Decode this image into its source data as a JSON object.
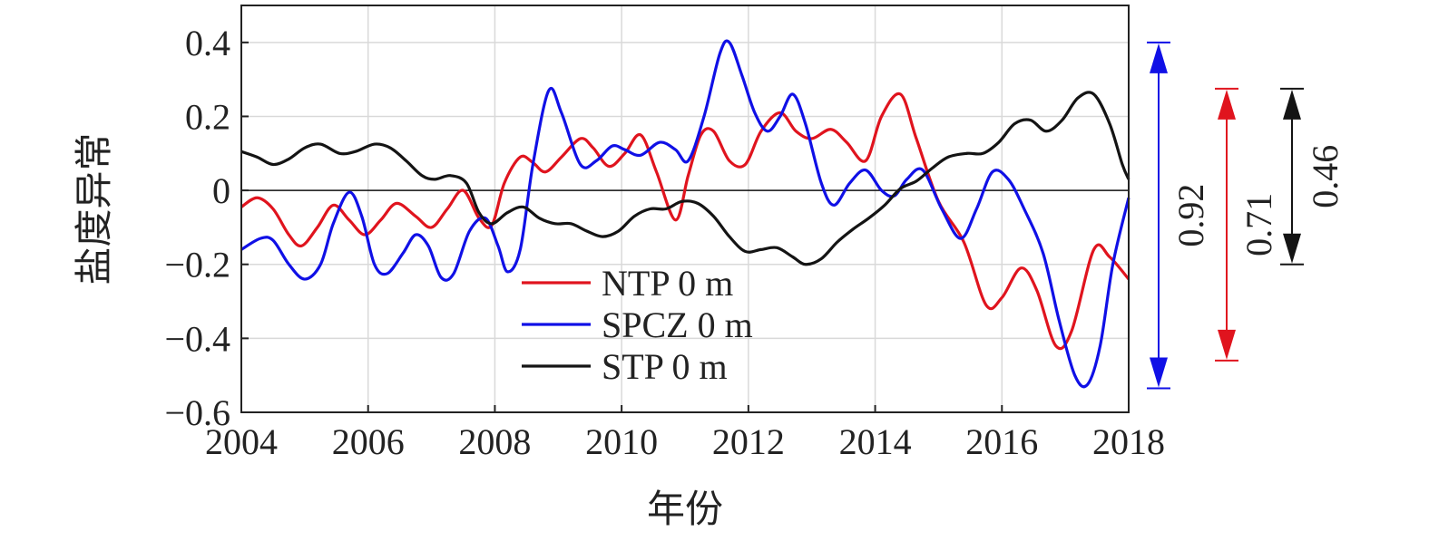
{
  "chart_data": {
    "type": "line",
    "xlabel": "年份",
    "ylabel": "盐度异常",
    "xlim": [
      2004,
      2018
    ],
    "ylim": [
      -0.6,
      0.5
    ],
    "x_ticks": [
      2004,
      2006,
      2008,
      2010,
      2012,
      2014,
      2016,
      2018
    ],
    "x_tick_labels": [
      "2004",
      "2006",
      "2008",
      "2010",
      "2012",
      "2014",
      "2016",
      "2018"
    ],
    "y_ticks": [
      0.4,
      0.2,
      0,
      -0.2,
      -0.4,
      -0.6
    ],
    "y_tick_labels": [
      "0.4",
      "0.2",
      "0",
      "−0.2",
      "−0.4",
      "−0.6"
    ],
    "grid": true,
    "zero_line": true,
    "legend_position": "bottom-center-left",
    "series": [
      {
        "name": "NTP 0 m",
        "color": "#e0141e",
        "points": [
          [
            2004.0,
            -0.045
          ],
          [
            2004.25,
            -0.02
          ],
          [
            2004.5,
            -0.05
          ],
          [
            2004.75,
            -0.12
          ],
          [
            2004.95,
            -0.15
          ],
          [
            2005.2,
            -0.1
          ],
          [
            2005.45,
            -0.04
          ],
          [
            2005.7,
            -0.08
          ],
          [
            2005.95,
            -0.12
          ],
          [
            2006.2,
            -0.08
          ],
          [
            2006.45,
            -0.035
          ],
          [
            2006.75,
            -0.07
          ],
          [
            2007.0,
            -0.1
          ],
          [
            2007.25,
            -0.05
          ],
          [
            2007.5,
            0.0
          ],
          [
            2007.75,
            -0.075
          ],
          [
            2007.95,
            -0.095
          ],
          [
            2008.15,
            0.02
          ],
          [
            2008.4,
            0.09
          ],
          [
            2008.6,
            0.075
          ],
          [
            2008.8,
            0.05
          ],
          [
            2009.05,
            0.09
          ],
          [
            2009.35,
            0.14
          ],
          [
            2009.55,
            0.115
          ],
          [
            2009.8,
            0.065
          ],
          [
            2010.05,
            0.1
          ],
          [
            2010.3,
            0.15
          ],
          [
            2010.55,
            0.05
          ],
          [
            2010.85,
            -0.08
          ],
          [
            2011.05,
            0.04
          ],
          [
            2011.25,
            0.15
          ],
          [
            2011.45,
            0.16
          ],
          [
            2011.7,
            0.08
          ],
          [
            2011.95,
            0.07
          ],
          [
            2012.2,
            0.16
          ],
          [
            2012.5,
            0.21
          ],
          [
            2012.75,
            0.16
          ],
          [
            2013.0,
            0.14
          ],
          [
            2013.3,
            0.165
          ],
          [
            2013.55,
            0.13
          ],
          [
            2013.85,
            0.08
          ],
          [
            2014.1,
            0.2
          ],
          [
            2014.4,
            0.26
          ],
          [
            2014.65,
            0.14
          ],
          [
            2015.0,
            -0.03
          ],
          [
            2015.4,
            -0.14
          ],
          [
            2015.75,
            -0.31
          ],
          [
            2016.0,
            -0.29
          ],
          [
            2016.3,
            -0.21
          ],
          [
            2016.55,
            -0.27
          ],
          [
            2016.85,
            -0.42
          ],
          [
            2017.1,
            -0.38
          ],
          [
            2017.45,
            -0.16
          ],
          [
            2017.7,
            -0.18
          ],
          [
            2018.0,
            -0.24
          ]
        ]
      },
      {
        "name": "SPCZ 0 m",
        "color": "#1010e6",
        "points": [
          [
            2004.0,
            -0.16
          ],
          [
            2004.3,
            -0.13
          ],
          [
            2004.5,
            -0.135
          ],
          [
            2004.75,
            -0.2
          ],
          [
            2005.0,
            -0.24
          ],
          [
            2005.25,
            -0.2
          ],
          [
            2005.45,
            -0.09
          ],
          [
            2005.7,
            -0.005
          ],
          [
            2005.9,
            -0.07
          ],
          [
            2006.1,
            -0.2
          ],
          [
            2006.3,
            -0.225
          ],
          [
            2006.55,
            -0.17
          ],
          [
            2006.75,
            -0.12
          ],
          [
            2006.95,
            -0.15
          ],
          [
            2007.15,
            -0.235
          ],
          [
            2007.35,
            -0.225
          ],
          [
            2007.6,
            -0.11
          ],
          [
            2007.85,
            -0.075
          ],
          [
            2008.05,
            -0.15
          ],
          [
            2008.2,
            -0.22
          ],
          [
            2008.4,
            -0.16
          ],
          [
            2008.6,
            0.07
          ],
          [
            2008.85,
            0.27
          ],
          [
            2009.05,
            0.21
          ],
          [
            2009.35,
            0.07
          ],
          [
            2009.6,
            0.08
          ],
          [
            2009.85,
            0.12
          ],
          [
            2010.05,
            0.11
          ],
          [
            2010.3,
            0.095
          ],
          [
            2010.6,
            0.13
          ],
          [
            2010.85,
            0.11
          ],
          [
            2011.05,
            0.08
          ],
          [
            2011.3,
            0.2
          ],
          [
            2011.55,
            0.37
          ],
          [
            2011.7,
            0.4
          ],
          [
            2011.9,
            0.31
          ],
          [
            2012.1,
            0.21
          ],
          [
            2012.3,
            0.16
          ],
          [
            2012.5,
            0.2
          ],
          [
            2012.7,
            0.26
          ],
          [
            2012.9,
            0.18
          ],
          [
            2013.15,
            0.02
          ],
          [
            2013.35,
            -0.04
          ],
          [
            2013.6,
            0.02
          ],
          [
            2013.85,
            0.055
          ],
          [
            2014.1,
            0.0
          ],
          [
            2014.3,
            -0.015
          ],
          [
            2014.5,
            0.03
          ],
          [
            2014.75,
            0.055
          ],
          [
            2015.05,
            -0.05
          ],
          [
            2015.35,
            -0.13
          ],
          [
            2015.6,
            -0.05
          ],
          [
            2015.85,
            0.05
          ],
          [
            2016.1,
            0.03
          ],
          [
            2016.35,
            -0.05
          ],
          [
            2016.65,
            -0.17
          ],
          [
            2016.9,
            -0.35
          ],
          [
            2017.15,
            -0.5
          ],
          [
            2017.35,
            -0.525
          ],
          [
            2017.55,
            -0.42
          ],
          [
            2017.75,
            -0.2
          ],
          [
            2018.0,
            -0.02
          ]
        ]
      },
      {
        "name": "STP 0 m",
        "color": "#141414",
        "points": [
          [
            2004.0,
            0.105
          ],
          [
            2004.25,
            0.09
          ],
          [
            2004.5,
            0.07
          ],
          [
            2004.75,
            0.085
          ],
          [
            2005.0,
            0.115
          ],
          [
            2005.25,
            0.125
          ],
          [
            2005.55,
            0.1
          ],
          [
            2005.8,
            0.105
          ],
          [
            2006.1,
            0.125
          ],
          [
            2006.35,
            0.115
          ],
          [
            2006.6,
            0.08
          ],
          [
            2006.85,
            0.04
          ],
          [
            2007.05,
            0.03
          ],
          [
            2007.3,
            0.04
          ],
          [
            2007.55,
            0.02
          ],
          [
            2007.75,
            -0.06
          ],
          [
            2007.95,
            -0.09
          ],
          [
            2008.2,
            -0.06
          ],
          [
            2008.45,
            -0.045
          ],
          [
            2008.7,
            -0.075
          ],
          [
            2008.95,
            -0.09
          ],
          [
            2009.2,
            -0.09
          ],
          [
            2009.45,
            -0.11
          ],
          [
            2009.7,
            -0.125
          ],
          [
            2009.95,
            -0.11
          ],
          [
            2010.2,
            -0.07
          ],
          [
            2010.45,
            -0.05
          ],
          [
            2010.7,
            -0.05
          ],
          [
            2010.95,
            -0.03
          ],
          [
            2011.2,
            -0.035
          ],
          [
            2011.45,
            -0.07
          ],
          [
            2011.7,
            -0.125
          ],
          [
            2011.95,
            -0.165
          ],
          [
            2012.2,
            -0.16
          ],
          [
            2012.45,
            -0.155
          ],
          [
            2012.7,
            -0.18
          ],
          [
            2012.9,
            -0.2
          ],
          [
            2013.15,
            -0.185
          ],
          [
            2013.4,
            -0.14
          ],
          [
            2013.65,
            -0.105
          ],
          [
            2013.9,
            -0.075
          ],
          [
            2014.15,
            -0.04
          ],
          [
            2014.4,
            0.005
          ],
          [
            2014.65,
            0.025
          ],
          [
            2014.9,
            0.06
          ],
          [
            2015.15,
            0.09
          ],
          [
            2015.45,
            0.1
          ],
          [
            2015.7,
            0.1
          ],
          [
            2015.95,
            0.13
          ],
          [
            2016.2,
            0.18
          ],
          [
            2016.45,
            0.19
          ],
          [
            2016.7,
            0.16
          ],
          [
            2016.95,
            0.19
          ],
          [
            2017.2,
            0.25
          ],
          [
            2017.45,
            0.26
          ],
          [
            2017.7,
            0.18
          ],
          [
            2017.9,
            0.07
          ],
          [
            2018.0,
            0.03
          ]
        ]
      }
    ],
    "range_markers": [
      {
        "label": "0.92",
        "color": "#1010e6",
        "top": 0.4,
        "bottom": -0.535
      },
      {
        "label": "0.71",
        "color": "#e0141e",
        "top": 0.275,
        "bottom": -0.46
      },
      {
        "label": "0.46",
        "color": "#141414",
        "top": 0.275,
        "bottom": -0.2
      }
    ]
  }
}
